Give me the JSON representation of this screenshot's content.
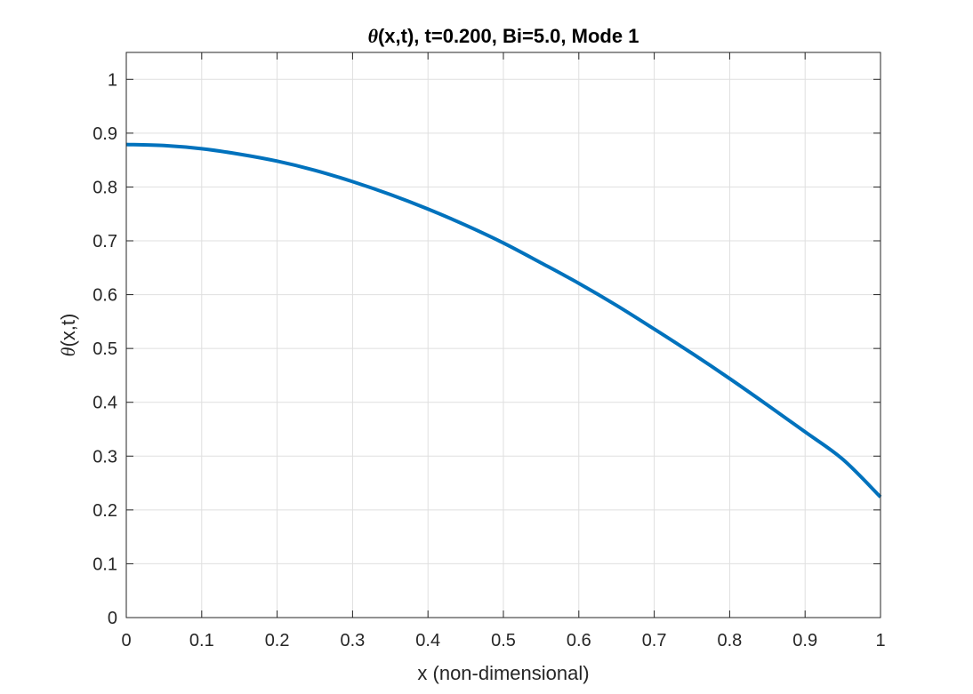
{
  "chart_data": {
    "type": "line",
    "title_symbol": "θ",
    "title_rest": "(x,t), t=0.200, Bi=5.0, Mode 1",
    "xlabel": "x (non-dimensional)",
    "ylabel_symbol": "θ",
    "ylabel_rest": "(x,t)",
    "xlim": [
      0,
      1
    ],
    "ylim": [
      0,
      1.05
    ],
    "xticks": [
      "0",
      "0.1",
      "0.2",
      "0.3",
      "0.4",
      "0.5",
      "0.6",
      "0.7",
      "0.8",
      "0.9",
      "1"
    ],
    "xtick_values": [
      0,
      0.1,
      0.2,
      0.3,
      0.4,
      0.5,
      0.6,
      0.7,
      0.8,
      0.9,
      1
    ],
    "yticks": [
      "0",
      "0.1",
      "0.2",
      "0.3",
      "0.4",
      "0.5",
      "0.6",
      "0.7",
      "0.8",
      "0.9",
      "1"
    ],
    "ytick_values": [
      0,
      0.1,
      0.2,
      0.3,
      0.4,
      0.5,
      0.6,
      0.7,
      0.8,
      0.9,
      1
    ],
    "grid": true,
    "series": [
      {
        "color": "#0072BD",
        "x": [
          0,
          0.05,
          0.1,
          0.15,
          0.2,
          0.25,
          0.3,
          0.35,
          0.4,
          0.45,
          0.5,
          0.55,
          0.6,
          0.65,
          0.7,
          0.75,
          0.8,
          0.85,
          0.9,
          0.95,
          1.0
        ],
        "y": [
          0.879,
          0.877,
          0.871,
          0.861,
          0.848,
          0.831,
          0.81,
          0.786,
          0.759,
          0.729,
          0.696,
          0.659,
          0.621,
          0.58,
          0.536,
          0.491,
          0.444,
          0.395,
          0.345,
          0.294,
          0.224
        ]
      }
    ]
  }
}
